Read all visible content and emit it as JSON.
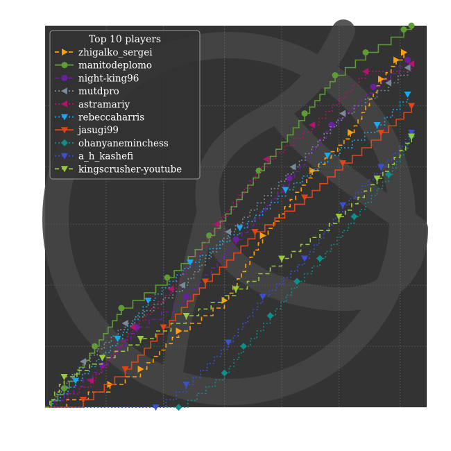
{
  "chart_data": {
    "type": "line",
    "title": "",
    "xlabel": "",
    "ylabel": "",
    "xlim": [
      0,
      100
    ],
    "ylim": [
      0,
      100
    ],
    "grid": true,
    "tick_labels_visible": false,
    "background": "#333333",
    "watermark": "chess-knight-logo",
    "legend": {
      "title": "Top 10 players",
      "placement": "top-left"
    },
    "series": [
      {
        "name": "zhigalko_sergei",
        "color": "#ff9f0a",
        "linestyle": "dashed",
        "marker": "triangle-right",
        "x": [
          0,
          17,
          25,
          35,
          47,
          57,
          70,
          80,
          88,
          92,
          94
        ],
        "y": [
          0,
          6,
          10,
          20,
          28,
          45,
          62,
          72,
          86,
          91,
          93
        ]
      },
      {
        "name": "manitodeplomo",
        "color": "#5e9c36",
        "linestyle": "solid",
        "marker": "circle",
        "x": [
          0,
          5,
          13,
          20,
          32,
          43,
          56,
          68,
          76,
          84,
          94,
          96
        ],
        "y": [
          0,
          5,
          16,
          26,
          34,
          45,
          62,
          77,
          87,
          93,
          99,
          100
        ]
      },
      {
        "name": "night-king96",
        "color": "#6c1fa3",
        "linestyle": "dashed",
        "marker": "octagon",
        "x": [
          0,
          15,
          24,
          37,
          50,
          64,
          75,
          86,
          95
        ],
        "y": [
          0,
          11,
          21,
          29,
          44,
          60,
          74,
          84,
          91
        ]
      },
      {
        "name": "mutdpro",
        "color": "#7a8a99",
        "linestyle": "dotted",
        "marker": "triangle-left",
        "x": [
          0,
          10,
          21,
          36,
          48,
          65,
          78,
          90,
          95
        ],
        "y": [
          0,
          12,
          22,
          32,
          46,
          63,
          77,
          85,
          89
        ]
      },
      {
        "name": "astramariy",
        "color": "#b2146e",
        "linestyle": "dotted",
        "marker": "triangle-left",
        "x": [
          0,
          12,
          23,
          33,
          45,
          58,
          70,
          84,
          96
        ],
        "y": [
          0,
          7,
          21,
          31,
          48,
          65,
          74,
          88,
          90
        ]
      },
      {
        "name": "rebeccaharris",
        "color": "#1aa7f0",
        "linestyle": "dotted",
        "marker": "triangle-down",
        "x": [
          0,
          8,
          19,
          27,
          38,
          51,
          63,
          74,
          87,
          95
        ],
        "y": [
          0,
          7,
          18,
          28,
          38,
          47,
          57,
          66,
          74,
          82
        ]
      },
      {
        "name": "jasugi99",
        "color": "#e0461a",
        "linestyle": "solid",
        "marker": "triangle-down",
        "x": [
          0,
          10,
          21,
          31,
          42,
          55,
          68,
          78,
          88,
          96
        ],
        "y": [
          0,
          2,
          10,
          21,
          33,
          46,
          55,
          64,
          72,
          79
        ]
      },
      {
        "name": "ohanyaneminchess",
        "color": "#0d8f8a",
        "linestyle": "dotted",
        "marker": "diamond",
        "x": [
          0,
          35,
          47,
          52,
          59,
          66,
          72,
          81,
          90,
          96
        ],
        "y": [
          0,
          0,
          9,
          16,
          24,
          33,
          39,
          50,
          61,
          71
        ]
      },
      {
        "name": "a_h_kashefi",
        "color": "#3b4fd1",
        "linestyle": "dotted",
        "marker": "triangle-down",
        "x": [
          0,
          29,
          37,
          48,
          57,
          68,
          78,
          88,
          96
        ],
        "y": [
          0,
          0,
          6,
          17,
          29,
          39,
          53,
          63,
          72
        ]
      },
      {
        "name": "kingscrusher-youtube",
        "color": "#9bc93e",
        "linestyle": "dashed",
        "marker": "triangle-down",
        "x": [
          0,
          5,
          15,
          25,
          37,
          50,
          62,
          77,
          87,
          96
        ],
        "y": [
          0,
          8,
          13,
          18,
          24,
          31,
          39,
          50,
          60,
          71
        ]
      }
    ]
  }
}
